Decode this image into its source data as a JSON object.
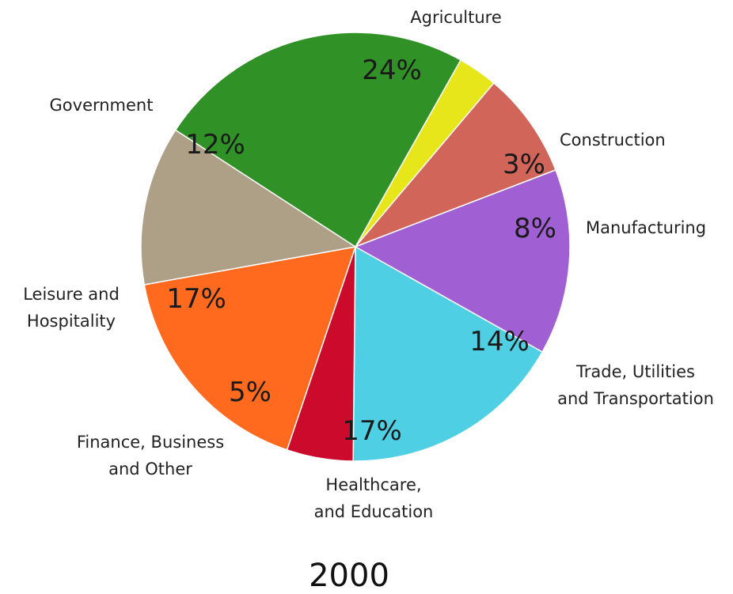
{
  "chart_data": {
    "type": "pie",
    "title": "2000",
    "start_angle_deg": -60.6,
    "direction": "clockwise",
    "slices": [
      {
        "label": "Construction",
        "label_lines": [
          "Construction"
        ],
        "value": 3,
        "value_label": "3%",
        "color": "#E6E61A"
      },
      {
        "label": "Manufacturing",
        "label_lines": [
          "Manufacturing"
        ],
        "value": 8,
        "value_label": "8%",
        "color": "#D2655A"
      },
      {
        "label": "Trade, Utilities and Transportation",
        "label_lines": [
          "Trade, Utilities",
          "and Transportation"
        ],
        "value": 14,
        "value_label": "14%",
        "color": "#A05FD2"
      },
      {
        "label": "Healthcare, and Education",
        "label_lines": [
          "Healthcare,",
          "and Education"
        ],
        "value": 17,
        "value_label": "17%",
        "color": "#4FCFE4"
      },
      {
        "label": "Finance, Business and Other",
        "label_lines": [
          "Finance, Business",
          "and Other"
        ],
        "value": 5,
        "value_label": "5%",
        "color": "#CC0A2C"
      },
      {
        "label": "Leisure and Hospitality",
        "label_lines": [
          "Leisure and",
          "Hospitality"
        ],
        "value": 17,
        "value_label": "17%",
        "color": "#FF6A1E"
      },
      {
        "label": "Government",
        "label_lines": [
          "Government"
        ],
        "value": 12,
        "value_label": "12%",
        "color": "#AE9F87"
      },
      {
        "label": "Agriculture",
        "label_lines": [
          "Agriculture"
        ],
        "value": 24,
        "value_label": "24%",
        "color": "#2F9126"
      }
    ]
  }
}
